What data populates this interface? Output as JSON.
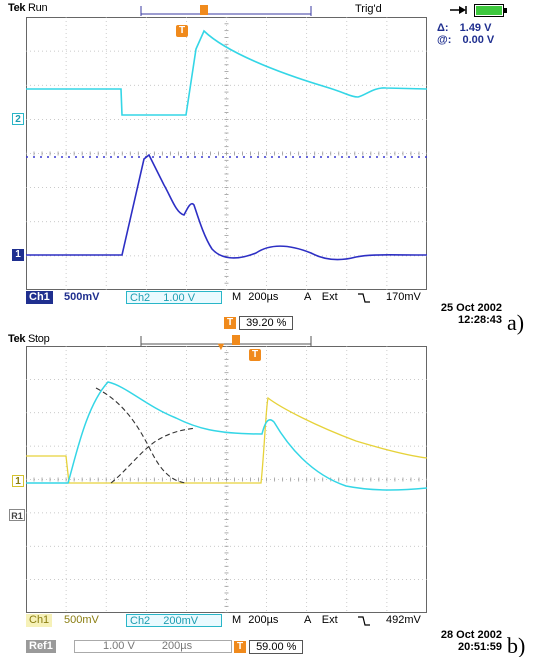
{
  "panel_a": {
    "brand": "Tek",
    "run_state": "Run",
    "trigger_status": "Trig'd",
    "delta_label": "Δ:",
    "delta_value": "1.49 V",
    "at_label": "@:",
    "at_value": "0.00 V",
    "ch2_marker": "2",
    "ch1_marker": "1",
    "trigger_marker": "T",
    "bottom_bar": {
      "ch1_label": "Ch1",
      "ch1_scale": "500mV",
      "ch2_label": "Ch2",
      "ch2_scale": "1.00 V",
      "m_label": "M",
      "timebase": "200µs",
      "a_label": "A",
      "source": "Ext",
      "slope_icon": "falling-edge",
      "level": "170mV"
    },
    "trigger_pos_label": "T",
    "trigger_pos": "39.20 %",
    "date": "25 Oct  2002",
    "time": "12:28:43",
    "panel_label": "a)",
    "colors": {
      "ch1": "#2d2fc4",
      "ch2": "#34d6e6"
    }
  },
  "panel_b": {
    "brand": "Tek",
    "run_state": "Stop",
    "ch1_marker": "1",
    "ref_marker": "R1",
    "trigger_marker": "T",
    "bottom_bar": {
      "ch1_label": "Ch1",
      "ch1_scale": "500mV",
      "ch2_label": "Ch2",
      "ch2_scale": "200mV",
      "m_label": "M",
      "timebase": "200µs",
      "a_label": "A",
      "source": "Ext",
      "slope_icon": "falling-edge",
      "level": "492mV"
    },
    "ref_bar": {
      "ref_label": "Ref1",
      "ref_scale": "1.00 V",
      "ref_time": "200µs"
    },
    "trigger_pos_label": "T",
    "trigger_pos": "59.00 %",
    "date": "28 Oct  2002",
    "time": "20:51:59",
    "panel_label": "b)",
    "colors": {
      "ch1": "#e6d23a",
      "ch2": "#34d6e6",
      "ref": "#333333"
    }
  },
  "icons": {
    "probe": "probe-icon",
    "battery": "battery-icon"
  }
}
